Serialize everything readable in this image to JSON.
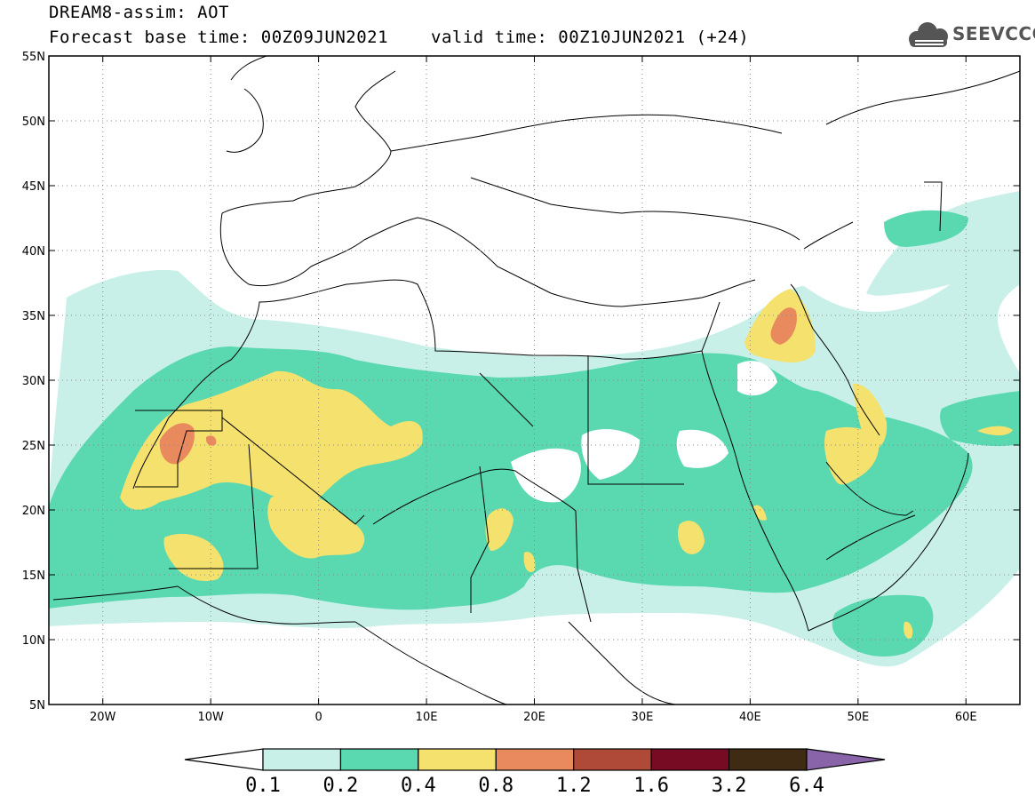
{
  "header": {
    "title": "DREAM8-assim: AOT",
    "base_time": "Forecast base time: 00Z09JUN2021",
    "valid_time": "valid time: 00Z10JUN2021 (+24)"
  },
  "logo": {
    "text": "SEEVCCC",
    "icon": "cloud-logo-icon"
  },
  "map": {
    "lon_range": [
      -25,
      65
    ],
    "lat_range": [
      5,
      55
    ],
    "lon_ticks": [
      {
        "v": -20,
        "label": "20W"
      },
      {
        "v": -10,
        "label": "10W"
      },
      {
        "v": 0,
        "label": "0"
      },
      {
        "v": 10,
        "label": "10E"
      },
      {
        "v": 20,
        "label": "20E"
      },
      {
        "v": 30,
        "label": "30E"
      },
      {
        "v": 40,
        "label": "40E"
      },
      {
        "v": 50,
        "label": "50E"
      },
      {
        "v": 60,
        "label": "60E"
      }
    ],
    "lat_ticks": [
      {
        "v": 5,
        "label": "5N"
      },
      {
        "v": 10,
        "label": "10N"
      },
      {
        "v": 15,
        "label": "15N"
      },
      {
        "v": 20,
        "label": "20N"
      },
      {
        "v": 25,
        "label": "25N"
      },
      {
        "v": 30,
        "label": "30N"
      },
      {
        "v": 35,
        "label": "35N"
      },
      {
        "v": 40,
        "label": "40N"
      },
      {
        "v": 45,
        "label": "45N"
      },
      {
        "v": 50,
        "label": "50N"
      },
      {
        "v": 55,
        "label": "55N"
      }
    ],
    "grid": true
  },
  "colorbar": {
    "labels": [
      "0.1",
      "0.2",
      "0.4",
      "0.8",
      "1.2",
      "1.6",
      "3.2",
      "6.4"
    ],
    "colors": [
      "#ffffff",
      "#c8f0e8",
      "#5ad8b0",
      "#f5e26e",
      "#e88a5e",
      "#b04a38",
      "#780b24",
      "#3f2b14",
      "#8a64a8"
    ]
  },
  "field_colors": {
    "l1": "#c8f0e8",
    "l2": "#5ad8b0",
    "l3": "#f5e26e",
    "l4": "#e88a5e",
    "border": "#000000"
  }
}
